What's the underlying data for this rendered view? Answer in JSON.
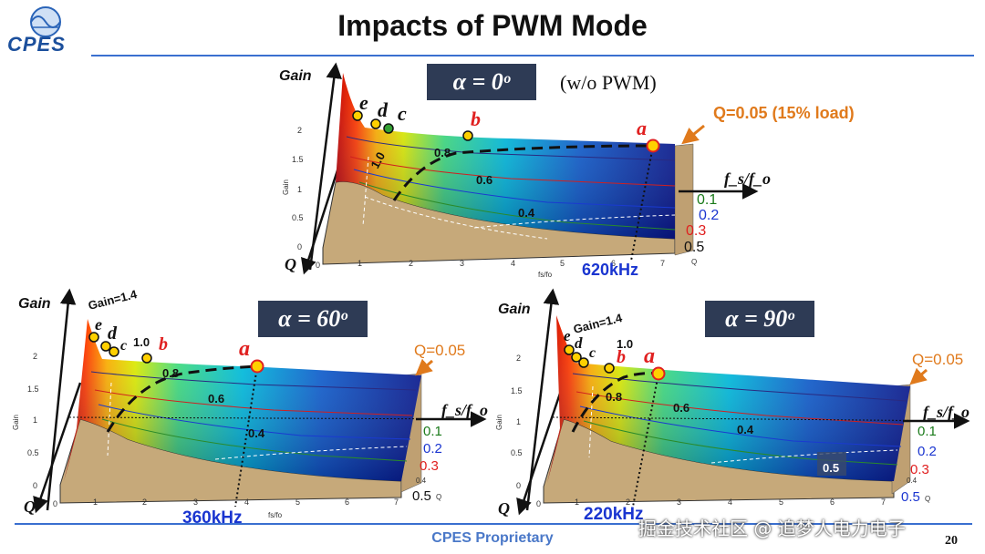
{
  "title": "Impacts of PWM Mode",
  "logo_text": "CPES",
  "footer": "CPES Proprietary",
  "page_number": "20",
  "watermark": "掘金技术社区 @ 追梦人电力电子",
  "axes": {
    "gain": "Gain",
    "q": "Q",
    "fs_fo": "fs/fo",
    "ratio": "f_s/f_o"
  },
  "colors": {
    "accent": "#3a6fd0",
    "title_box": "#2e3b55",
    "annotation": "#e07a1c",
    "q_red": "#e02020",
    "q_blue": "#1a35d0",
    "q_green": "#1a7a1a",
    "khz": "#1a35d0"
  },
  "panels": {
    "top": {
      "alpha": "α = 0ᵒ",
      "note": "(w/o PWM)",
      "q_note": "Q=0.05 (15% load)",
      "freq": "620kHz",
      "points": [
        "a",
        "b",
        "c",
        "d",
        "e"
      ],
      "contours": [
        "1.0",
        "0.8",
        "0.6",
        "0.4"
      ],
      "q_values": [
        "0.1",
        "0.2",
        "0.3",
        "0.5"
      ],
      "gain_ticks": [
        "2",
        "1.5",
        "1",
        "0.5",
        "0"
      ],
      "fs_ticks": [
        "0",
        "1",
        "2",
        "3",
        "4",
        "5",
        "6",
        "7"
      ]
    },
    "left": {
      "alpha": "α = 60ᵒ",
      "q_note": "Q=0.05",
      "gain_note": "Gain=1.4",
      "freq": "360kHz",
      "points": [
        "a",
        "b",
        "c",
        "d",
        "e"
      ],
      "contours": [
        "1.0",
        "0.8",
        "0.6",
        "0.4"
      ],
      "q_values": [
        "0.1",
        "0.2",
        "0.3",
        "0.4",
        "0.5"
      ],
      "gain_ticks": [
        "2",
        "1.5",
        "1",
        "0.5",
        "0"
      ],
      "fs_ticks": [
        "0",
        "1",
        "2",
        "3",
        "4",
        "5",
        "6",
        "7"
      ]
    },
    "right": {
      "alpha": "α = 90ᵒ",
      "q_note": "Q=0.05",
      "gain_note": "Gain=1.4",
      "freq": "220kHz",
      "points": [
        "a",
        "b",
        "c",
        "d",
        "e"
      ],
      "contours": [
        "1.0",
        "0.8",
        "0.6",
        "0.4",
        "0.5"
      ],
      "q_values": [
        "0.1",
        "0.2",
        "0.3",
        "0.4",
        "0.5"
      ],
      "gain_ticks": [
        "2",
        "1.5",
        "1",
        "0.5",
        "0"
      ],
      "fs_ticks": [
        "0",
        "1",
        "2",
        "3",
        "4",
        "5",
        "6",
        "7"
      ]
    }
  }
}
